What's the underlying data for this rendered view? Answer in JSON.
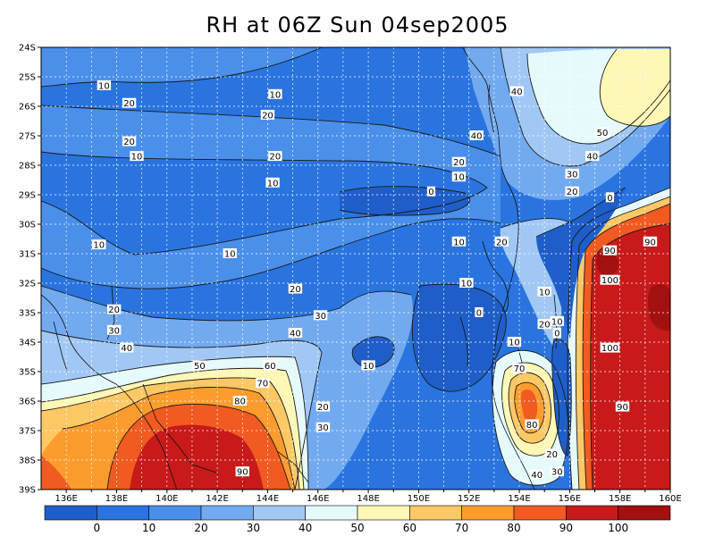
{
  "title": "RH at 06Z Sun 04sep2005",
  "map": {
    "variable": "RH",
    "lon_range": [
      "135E",
      "160E"
    ],
    "lat_range": [
      "24S",
      "39S"
    ],
    "lon_ticks": [
      "136E",
      "138E",
      "140E",
      "142E",
      "144E",
      "146E",
      "148E",
      "150E",
      "152E",
      "154E",
      "156E",
      "158E",
      "160E"
    ],
    "lat_ticks": [
      "24S",
      "25S",
      "26S",
      "27S",
      "28S",
      "29S",
      "30S",
      "31S",
      "32S",
      "33S",
      "34S",
      "35S",
      "36S",
      "37S",
      "38S",
      "39S"
    ],
    "contour_labels": [
      {
        "text": "10",
        "lon": 137.5,
        "lat": 25.3
      },
      {
        "text": "10",
        "lon": 144.3,
        "lat": 25.6
      },
      {
        "text": "20",
        "lon": 138.5,
        "lat": 25.9
      },
      {
        "text": "20",
        "lon": 144.0,
        "lat": 26.3
      },
      {
        "text": "20",
        "lon": 138.5,
        "lat": 27.2
      },
      {
        "text": "10",
        "lon": 138.8,
        "lat": 27.7
      },
      {
        "text": "20",
        "lon": 144.3,
        "lat": 27.7
      },
      {
        "text": "10",
        "lon": 144.2,
        "lat": 28.6
      },
      {
        "text": "0",
        "lon": 150.5,
        "lat": 28.9
      },
      {
        "text": "20",
        "lon": 151.6,
        "lat": 27.9
      },
      {
        "text": "10",
        "lon": 151.6,
        "lat": 28.4
      },
      {
        "text": "40",
        "lon": 153.9,
        "lat": 25.5
      },
      {
        "text": "40",
        "lon": 152.3,
        "lat": 27.0
      },
      {
        "text": "50",
        "lon": 157.3,
        "lat": 26.9
      },
      {
        "text": "40",
        "lon": 156.9,
        "lat": 27.7
      },
      {
        "text": "30",
        "lon": 156.1,
        "lat": 28.3
      },
      {
        "text": "20",
        "lon": 156.1,
        "lat": 28.9
      },
      {
        "text": "0",
        "lon": 157.6,
        "lat": 29.1
      },
      {
        "text": "10",
        "lon": 137.3,
        "lat": 30.7
      },
      {
        "text": "10",
        "lon": 142.5,
        "lat": 31.0
      },
      {
        "text": "10",
        "lon": 151.6,
        "lat": 30.6
      },
      {
        "text": "20",
        "lon": 153.3,
        "lat": 30.6
      },
      {
        "text": "90",
        "lon": 157.6,
        "lat": 30.9
      },
      {
        "text": "90",
        "lon": 159.2,
        "lat": 30.6
      },
      {
        "text": "100",
        "lon": 157.6,
        "lat": 31.9
      },
      {
        "text": "20",
        "lon": 145.1,
        "lat": 32.2
      },
      {
        "text": "10",
        "lon": 151.9,
        "lat": 32.0
      },
      {
        "text": "10",
        "lon": 155.0,
        "lat": 32.3
      },
      {
        "text": "0",
        "lon": 152.4,
        "lat": 33.0
      },
      {
        "text": "20",
        "lon": 137.9,
        "lat": 32.9
      },
      {
        "text": "30",
        "lon": 146.1,
        "lat": 33.1
      },
      {
        "text": "20",
        "lon": 155.0,
        "lat": 33.4
      },
      {
        "text": "10",
        "lon": 155.5,
        "lat": 33.3
      },
      {
        "text": "0",
        "lon": 155.5,
        "lat": 33.7
      },
      {
        "text": "30",
        "lon": 137.9,
        "lat": 33.6
      },
      {
        "text": "40",
        "lon": 145.1,
        "lat": 33.7
      },
      {
        "text": "40",
        "lon": 138.4,
        "lat": 34.2
      },
      {
        "text": "10",
        "lon": 153.8,
        "lat": 34.0
      },
      {
        "text": "100",
        "lon": 157.6,
        "lat": 34.2
      },
      {
        "text": "50",
        "lon": 141.3,
        "lat": 34.8
      },
      {
        "text": "60",
        "lon": 144.1,
        "lat": 34.8
      },
      {
        "text": "10",
        "lon": 148.0,
        "lat": 34.8
      },
      {
        "text": "70",
        "lon": 154.0,
        "lat": 34.9
      },
      {
        "text": "70",
        "lon": 143.8,
        "lat": 35.4
      },
      {
        "text": "80",
        "lon": 142.9,
        "lat": 36.0
      },
      {
        "text": "20",
        "lon": 146.2,
        "lat": 36.2
      },
      {
        "text": "90",
        "lon": 158.1,
        "lat": 36.2
      },
      {
        "text": "80",
        "lon": 154.5,
        "lat": 36.8
      },
      {
        "text": "30",
        "lon": 146.2,
        "lat": 36.9
      },
      {
        "text": "20",
        "lon": 155.3,
        "lat": 37.8
      },
      {
        "text": "90",
        "lon": 143.0,
        "lat": 38.4
      },
      {
        "text": "40",
        "lon": 154.7,
        "lat": 38.5
      },
      {
        "text": "30",
        "lon": 155.5,
        "lat": 38.4
      }
    ]
  },
  "colorbar": {
    "labels": [
      "0",
      "10",
      "20",
      "30",
      "40",
      "50",
      "60",
      "70",
      "80",
      "90",
      "100"
    ],
    "colors": [
      "#1f5ec9",
      "#2a74df",
      "#4a8fea",
      "#72aaf0",
      "#a1c8f5",
      "#e6fafc",
      "#fef7b5",
      "#fec865",
      "#fd9c2e",
      "#f15a21",
      "#c81a1a",
      "#a31010"
    ]
  }
}
